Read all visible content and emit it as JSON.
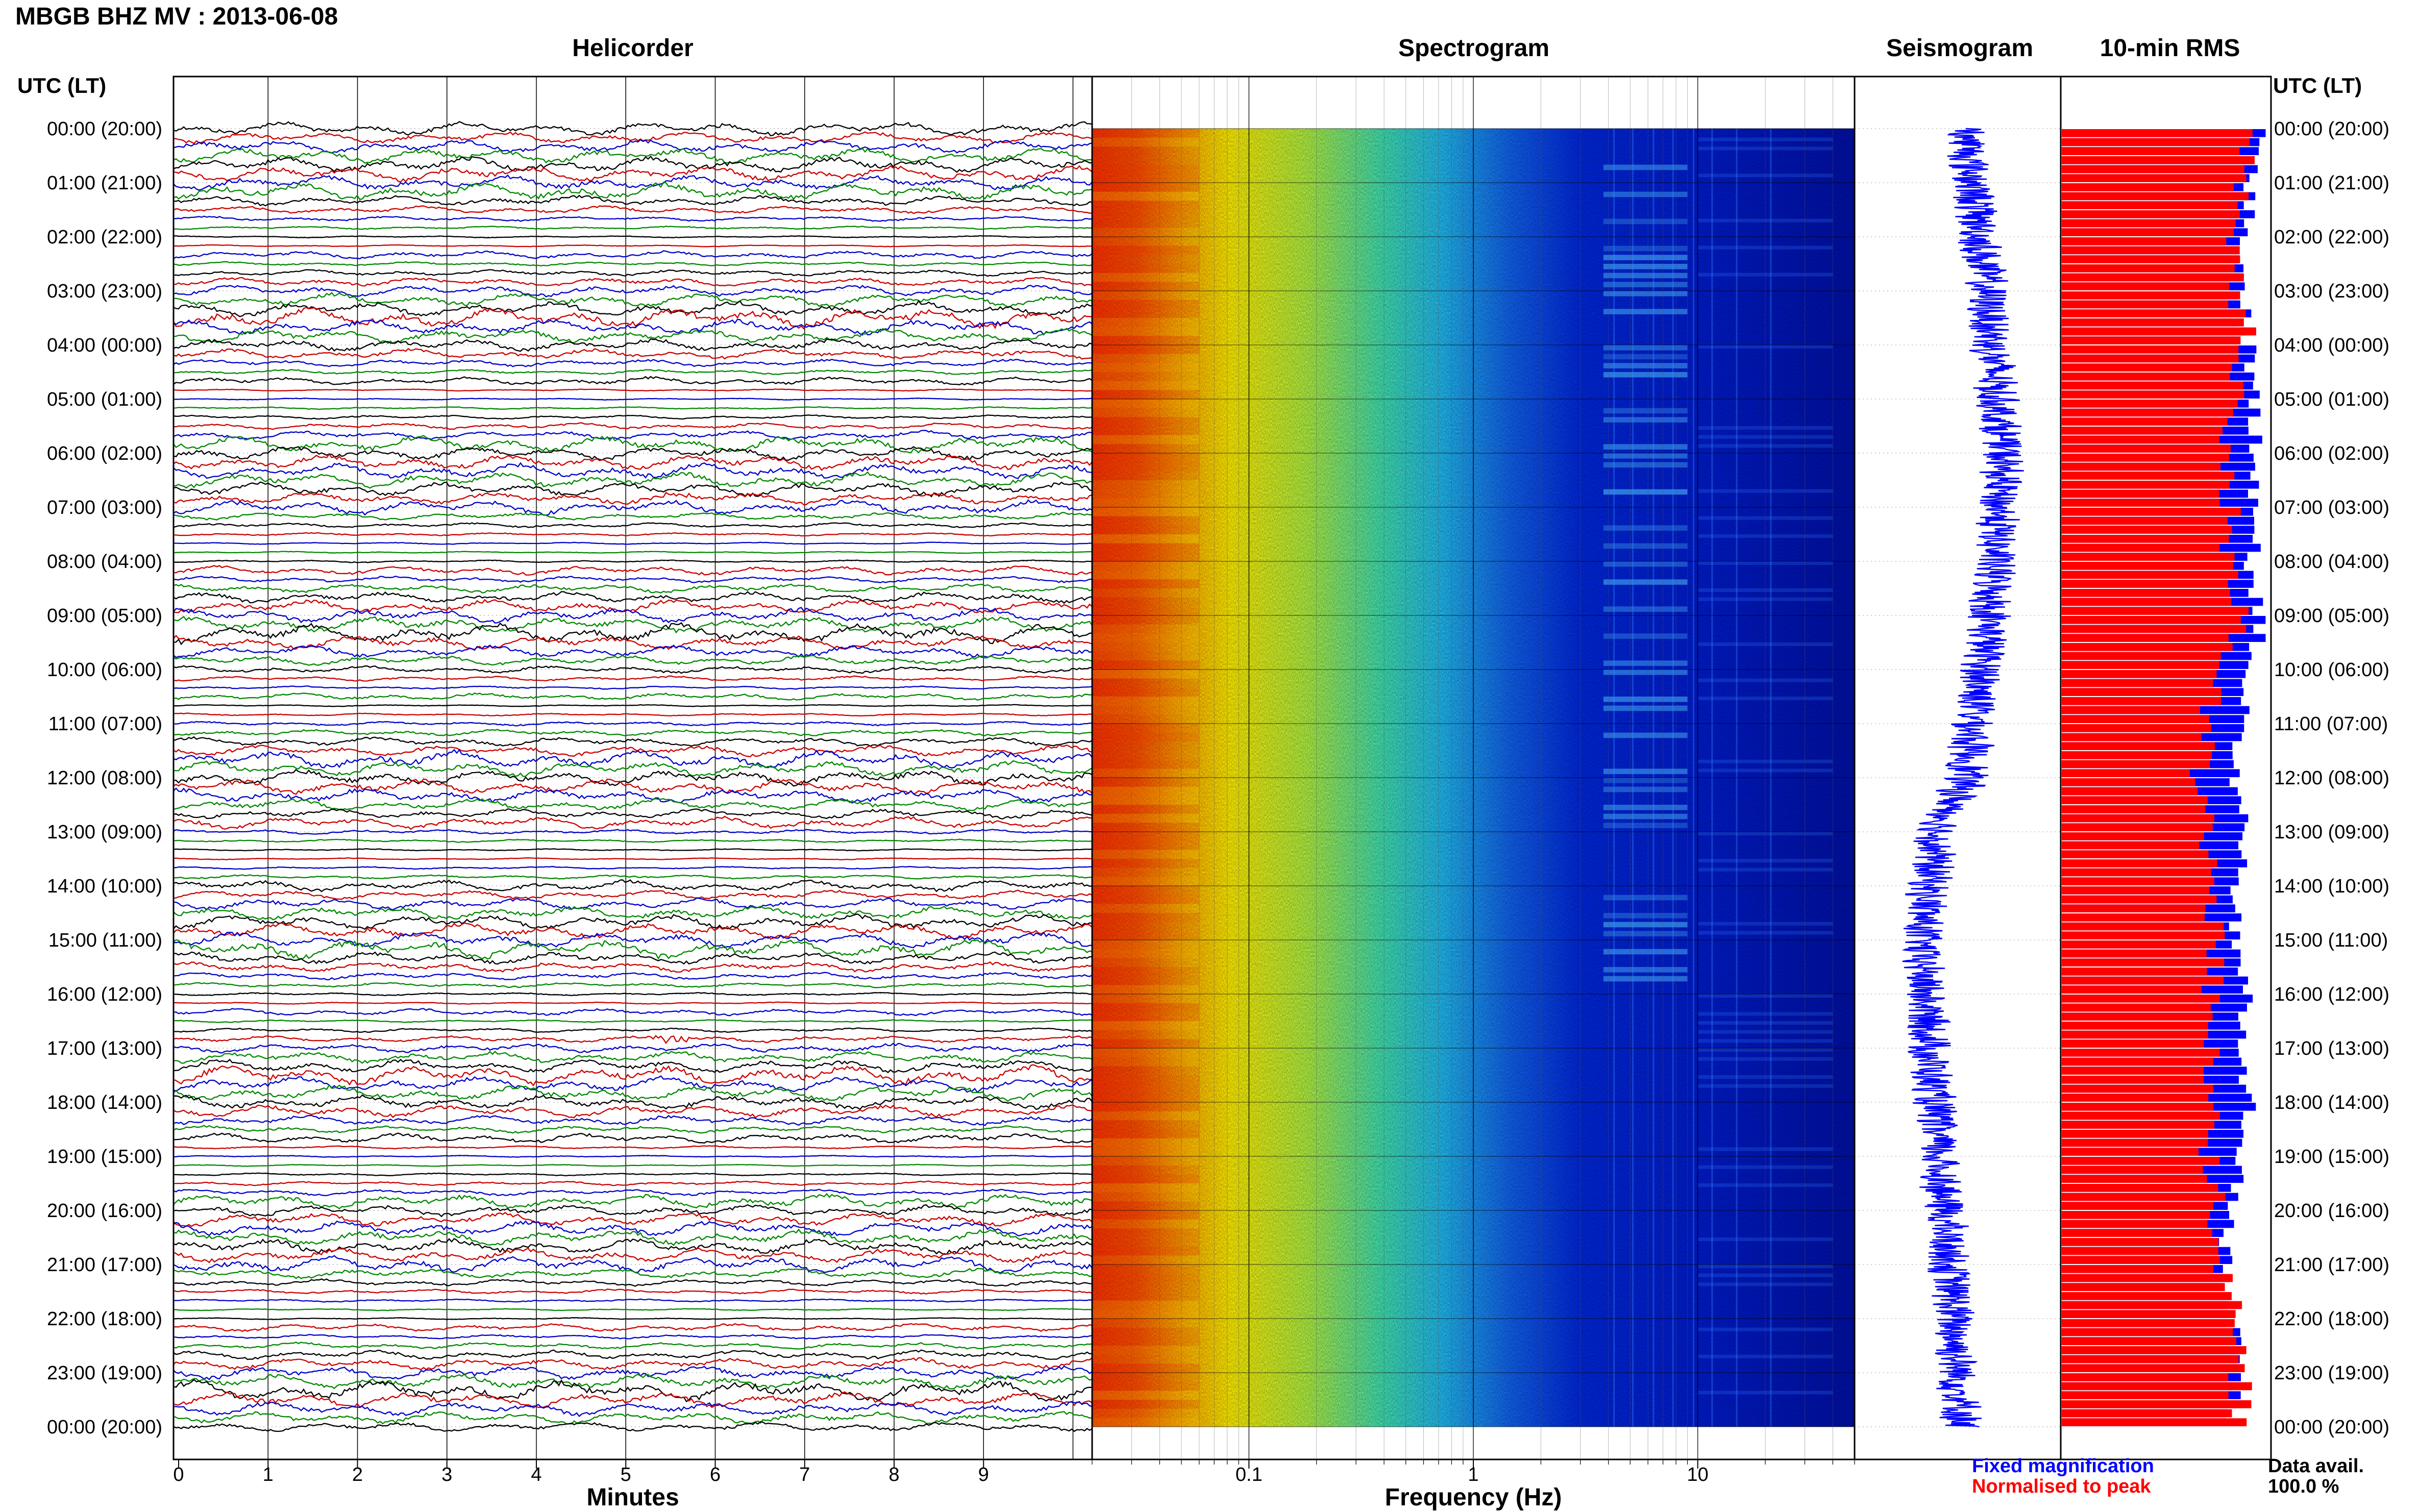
{
  "title": "MBGB BHZ MV : 2013-06-08",
  "panels": {
    "helicorder": "Helicorder",
    "spectrogram": "Spectrogram",
    "seismogram": "Seismogram",
    "rms": "10-min RMS"
  },
  "time_axis_label": "UTC (LT)",
  "time_labels": [
    "00:00 (20:00)",
    "01:00 (21:00)",
    "02:00 (22:00)",
    "03:00 (23:00)",
    "04:00 (00:00)",
    "05:00 (01:00)",
    "06:00 (02:00)",
    "07:00 (03:00)",
    "08:00 (04:00)",
    "09:00 (05:00)",
    "10:00 (06:00)",
    "11:00 (07:00)",
    "12:00 (08:00)",
    "13:00 (09:00)",
    "14:00 (10:00)",
    "15:00 (11:00)",
    "16:00 (12:00)",
    "17:00 (13:00)",
    "18:00 (14:00)",
    "19:00 (15:00)",
    "20:00 (16:00)",
    "21:00 (17:00)",
    "22:00 (18:00)",
    "23:00 (19:00)",
    "00:00 (20:00)"
  ],
  "helicorder_xlabel": "Minutes",
  "helicorder_xticks": [
    "0",
    "1",
    "2",
    "3",
    "4",
    "5",
    "6",
    "7",
    "8",
    "9"
  ],
  "spectrogram_xlabel": "Frequency (Hz)",
  "spectrogram_xticks": [
    "0.1",
    "1",
    "10"
  ],
  "legend": {
    "fixed": "Fixed magnification",
    "normalised": "Normalised to peak",
    "fixed_color": "#0000ff",
    "normalised_color": "#ff0000"
  },
  "data_avail_label": "Data avail.",
  "data_avail_value": "100.0 %",
  "colors": {
    "trace_cycle": [
      "#000000",
      "#cc0000",
      "#0000cc",
      "#008800"
    ],
    "seismogram": "#0000ff",
    "rms_fixed": "#0000ff",
    "rms_normalised": "#ff0000"
  },
  "chart_data": [
    {
      "type": "line",
      "name": "Helicorder",
      "xlabel": "Minutes",
      "xlim": [
        0,
        10
      ],
      "ylim_hours_utc": [
        0,
        24
      ],
      "rows_per_hour": 6,
      "events": [
        {
          "utc_hour": 6.83,
          "minute": 5.5,
          "color": "#cc0000"
        },
        {
          "utc_hour": 16.83,
          "minute": 5.5,
          "color": "#0000cc"
        },
        {
          "utc_hour": 18.97,
          "minute": 1.2,
          "color": "#0000cc"
        },
        {
          "utc_hour": 18.97,
          "minute": 5.1,
          "color": "#cc0000"
        }
      ]
    },
    {
      "type": "heatmap",
      "name": "Spectrogram",
      "xlabel": "Frequency (Hz)",
      "xscale": "log",
      "xlim": [
        0.02,
        50
      ],
      "ylim_hours_utc": [
        0,
        24
      ]
    },
    {
      "type": "line",
      "name": "Seismogram",
      "ylim_hours_utc": [
        0,
        24
      ],
      "long_period_drift_hours": [
        0,
        3,
        6,
        9,
        12,
        13,
        15,
        18,
        21,
        24
      ],
      "long_period_drift": [
        0.1,
        0.35,
        0.55,
        0.4,
        0.1,
        -0.25,
        -0.45,
        -0.3,
        -0.1,
        0.05
      ]
    },
    {
      "type": "bar",
      "name": "10-min RMS",
      "orientation": "horizontal",
      "ylim_hours_utc": [
        0,
        24
      ],
      "bars_per_hour": 6,
      "fixed_magnification": [
        0.95,
        0.9,
        0.88,
        0.86,
        0.9,
        0.92,
        0.94,
        0.93,
        0.91,
        0.96,
        0.9,
        0.85,
        0.82,
        0.9,
        0.8,
        0.85,
        0.88,
        0.85,
        0.9,
        0.86,
        0.8,
        0.78,
        0.83,
        0.85,
        0.8
      ],
      "normalised_to_peak": [
        0.9,
        0.85,
        0.8,
        0.83,
        0.9,
        0.8,
        0.78,
        0.8,
        0.82,
        0.88,
        0.72,
        0.7,
        0.66,
        0.7,
        0.72,
        0.74,
        0.72,
        0.7,
        0.76,
        0.7,
        0.75,
        0.78,
        0.82,
        0.85,
        0.88
      ]
    }
  ]
}
